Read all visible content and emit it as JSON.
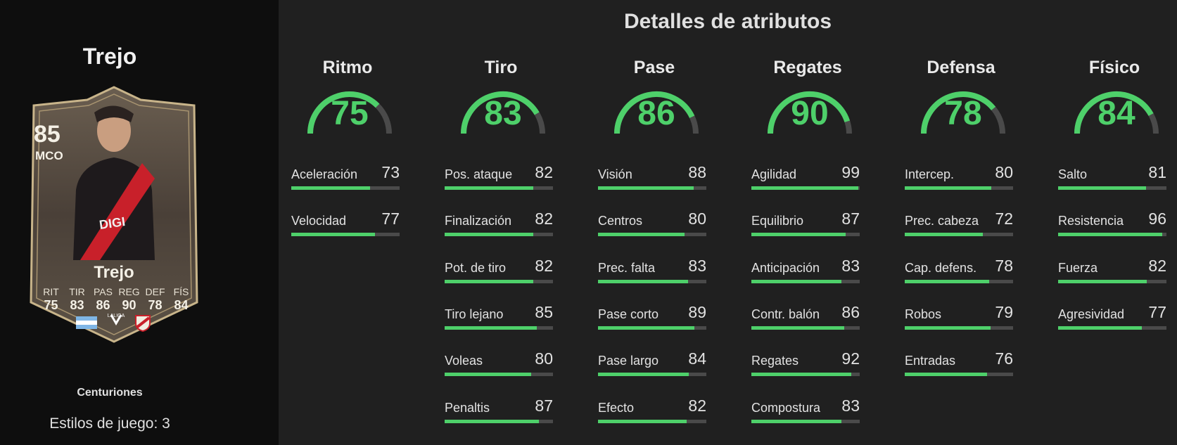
{
  "player": {
    "name": "Trejo",
    "card": {
      "rating": "85",
      "position": "MCO",
      "name": "Trejo",
      "stat_labels": [
        "RIT",
        "TIR",
        "PAS",
        "REG",
        "DEF",
        "FÍS"
      ],
      "stat_values": [
        "75",
        "83",
        "86",
        "90",
        "78",
        "84"
      ],
      "league_logo_text": "LALIGA"
    },
    "set_name": "Centuriones",
    "playstyles": "Estilos de juego: 3"
  },
  "panel": {
    "title": "Detalles de atributos",
    "categories": [
      {
        "name": "Ritmo",
        "value": 75,
        "attributes": [
          {
            "name": "Aceleración",
            "value": 73
          },
          {
            "name": "Velocidad",
            "value": 77
          }
        ]
      },
      {
        "name": "Tiro",
        "value": 83,
        "attributes": [
          {
            "name": "Pos. ataque",
            "value": 82
          },
          {
            "name": "Finalización",
            "value": 82
          },
          {
            "name": "Pot. de tiro",
            "value": 82
          },
          {
            "name": "Tiro lejano",
            "value": 85
          },
          {
            "name": "Voleas",
            "value": 80
          },
          {
            "name": "Penaltis",
            "value": 87
          }
        ]
      },
      {
        "name": "Pase",
        "value": 86,
        "attributes": [
          {
            "name": "Visión",
            "value": 88
          },
          {
            "name": "Centros",
            "value": 80
          },
          {
            "name": "Prec. falta",
            "value": 83
          },
          {
            "name": "Pase corto",
            "value": 89
          },
          {
            "name": "Pase largo",
            "value": 84
          },
          {
            "name": "Efecto",
            "value": 82
          }
        ]
      },
      {
        "name": "Regates",
        "value": 90,
        "attributes": [
          {
            "name": "Agilidad",
            "value": 99
          },
          {
            "name": "Equilibrio",
            "value": 87
          },
          {
            "name": "Anticipación",
            "value": 83
          },
          {
            "name": "Contr. balón",
            "value": 86
          },
          {
            "name": "Regates",
            "value": 92
          },
          {
            "name": "Compostura",
            "value": 83
          }
        ]
      },
      {
        "name": "Defensa",
        "value": 78,
        "attributes": [
          {
            "name": "Intercep.",
            "value": 80
          },
          {
            "name": "Prec. cabeza",
            "value": 72
          },
          {
            "name": "Cap. defens.",
            "value": 78
          },
          {
            "name": "Robos",
            "value": 79
          },
          {
            "name": "Entradas",
            "value": 76
          }
        ]
      },
      {
        "name": "Físico",
        "value": 84,
        "attributes": [
          {
            "name": "Salto",
            "value": 81
          },
          {
            "name": "Resistencia",
            "value": 96
          },
          {
            "name": "Fuerza",
            "value": 82
          },
          {
            "name": "Agresividad",
            "value": 77
          }
        ]
      }
    ]
  },
  "colors": {
    "accent_green": "#4ed06a",
    "track_gray": "#4a4a4a",
    "card_gold": "#c8b48a"
  }
}
